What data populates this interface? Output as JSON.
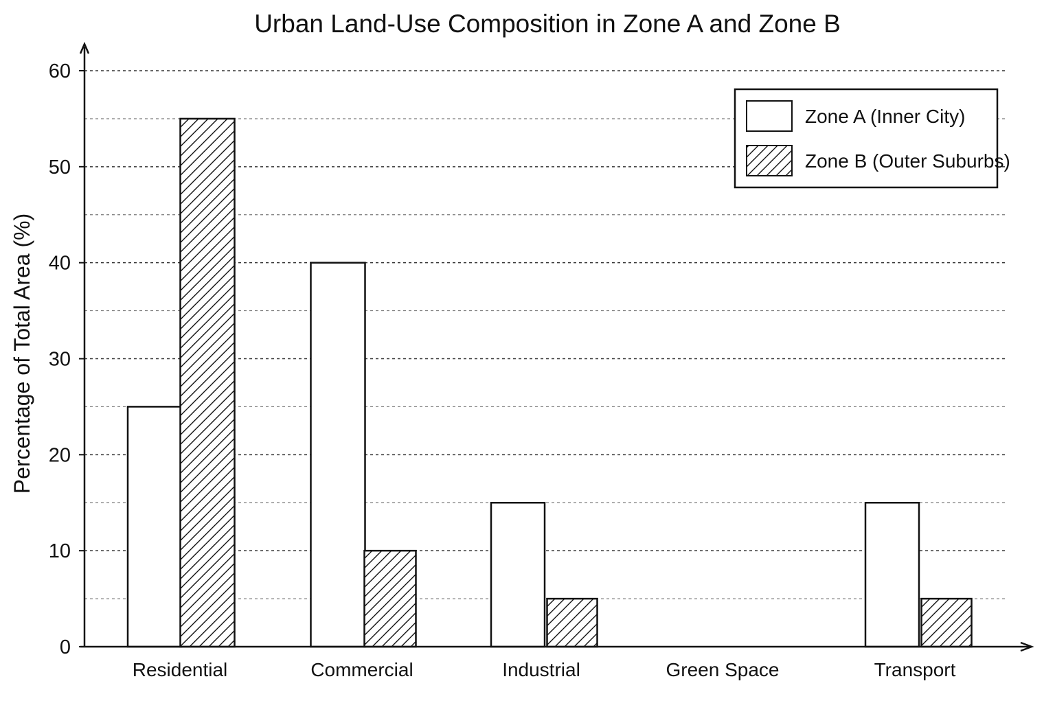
{
  "chart_data": {
    "type": "bar",
    "title": "Urban Land-Use Composition in Zone A and Zone B",
    "xlabel": "",
    "ylabel": "Percentage of Total Area (%)",
    "categories": [
      "Residential",
      "Commercial",
      "Industrial",
      "Green Space",
      "Transport"
    ],
    "series": [
      {
        "name": "Zone A (Inner City)",
        "values": [
          25,
          40,
          15,
          0,
          15
        ],
        "fill": "#ffffff",
        "pattern": "none"
      },
      {
        "name": "Zone B (Outer Suburbs)",
        "values": [
          55,
          10,
          5,
          0,
          5
        ],
        "fill": "#ffffff",
        "pattern": "diagonal-hatch"
      }
    ],
    "ylim": [
      0,
      60
    ],
    "yticks": [
      0,
      10,
      20,
      30,
      40,
      50,
      60
    ],
    "ytick_labels": [
      "0",
      "10",
      "20",
      "30",
      "40",
      "50",
      "60"
    ],
    "grid": {
      "major": true,
      "minor": true,
      "style": "dashed",
      "color": "#555555"
    },
    "legend_position": "top-right",
    "colors": {
      "stroke": "#111111",
      "background": "#ffffff"
    }
  }
}
